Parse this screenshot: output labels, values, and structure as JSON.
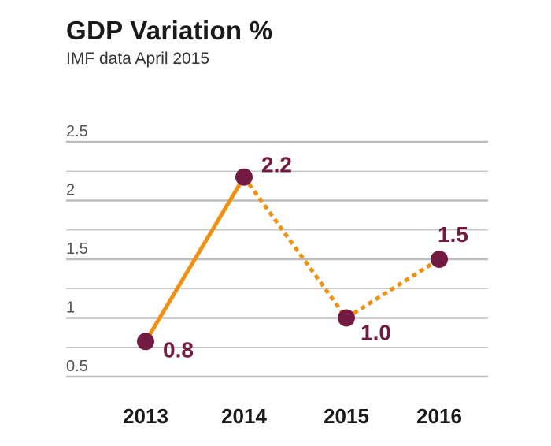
{
  "colors": {
    "line": "#F29111",
    "point": "#731A42",
    "grid": "#BDBDBD",
    "label": "#731A42"
  },
  "chart_data": {
    "type": "line",
    "title": "GDP Variation %",
    "subtitle": "IMF data April 2015",
    "categories": [
      "2013",
      "2014",
      "2015",
      "2016"
    ],
    "series": [
      {
        "values": [
          0.8,
          2.2,
          1.0,
          1.5
        ],
        "line_styles": [
          "solid",
          "dotted",
          "dotted"
        ]
      }
    ],
    "data_labels": [
      "0.8",
      "2.2",
      "1.0",
      "1.5"
    ],
    "y_ticks": [
      "0.5",
      "1",
      "1.5",
      "2",
      "2.5"
    ],
    "ylim": [
      0.5,
      2.5
    ],
    "grid": true,
    "xlabel": "",
    "ylabel": ""
  }
}
